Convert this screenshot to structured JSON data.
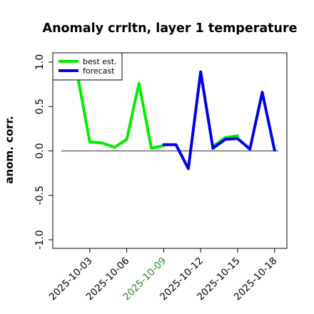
{
  "chart_data": {
    "type": "line",
    "title": "Anomaly crrltn, layer 1 temperature",
    "ylabel": "anom. corr.",
    "xlabel": "",
    "ylim": [
      -1.0,
      1.0
    ],
    "yticks": [
      -1.0,
      -0.5,
      0.0,
      0.5,
      1.0
    ],
    "ytick_labels": [
      "-1.0",
      "-0.5",
      "0.0",
      "0.5",
      "1.0"
    ],
    "x": [
      "2025-10-01",
      "2025-10-02",
      "2025-10-03",
      "2025-10-04",
      "2025-10-05",
      "2025-10-06",
      "2025-10-07",
      "2025-10-08",
      "2025-10-09",
      "2025-10-10",
      "2025-10-11",
      "2025-10-12",
      "2025-10-13",
      "2025-10-14",
      "2025-10-15",
      "2025-10-16",
      "2025-10-17",
      "2025-10-18"
    ],
    "xlim": [
      "2025-09-30",
      "2025-10-19"
    ],
    "xtick_labels": [
      "2025-10-03",
      "2025-10-06",
      "2025-10-09",
      "2025-10-12",
      "2025-10-15",
      "2025-10-18"
    ],
    "xtick_colors": [
      "#000000",
      "#000000",
      "#228B22",
      "#000000",
      "#000000",
      "#000000"
    ],
    "reference_line": 0.0,
    "series": [
      {
        "name": "best est.",
        "color": "#00ee00",
        "values": [
          null,
          0.86,
          0.1,
          0.09,
          0.04,
          0.13,
          0.76,
          0.03,
          0.06,
          null,
          null,
          null,
          0.05,
          0.15,
          0.17,
          null,
          null,
          null
        ]
      },
      {
        "name": "forecast",
        "color": "#0000ee",
        "values": [
          null,
          null,
          null,
          null,
          null,
          null,
          null,
          null,
          0.07,
          0.07,
          -0.2,
          0.89,
          0.03,
          0.13,
          0.14,
          0.02,
          0.66,
          0.01
        ]
      }
    ],
    "legend": {
      "position": "top-left"
    },
    "grid": false
  }
}
